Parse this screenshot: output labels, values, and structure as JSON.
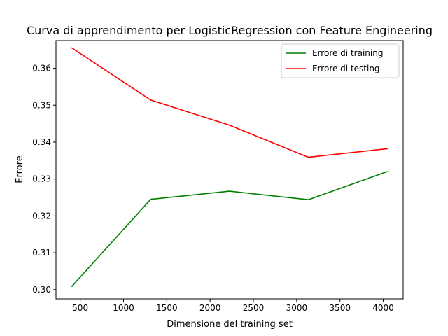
{
  "chart_data": {
    "type": "line",
    "title": "Curva di apprendimento per LogisticRegression con Feature Engineering",
    "xlabel": "Dimensione del training set",
    "ylabel": "Errore",
    "xlim": [
      220,
      4230
    ],
    "ylim": [
      0.2975,
      0.3675
    ],
    "xticks": [
      500,
      1000,
      1500,
      2000,
      2500,
      3000,
      3500,
      4000
    ],
    "xtick_labels": [
      "500",
      "1000",
      "1500",
      "2000",
      "2500",
      "3000",
      "3500",
      "4000"
    ],
    "yticks": [
      0.3,
      0.31,
      0.32,
      0.33,
      0.34,
      0.35,
      0.36
    ],
    "ytick_labels": [
      "0.30",
      "0.31",
      "0.32",
      "0.33",
      "0.34",
      "0.35",
      "0.36"
    ],
    "grid": false,
    "legend_position": "top-right",
    "x": [
      404,
      1314,
      2224,
      3135,
      4045
    ],
    "series": [
      {
        "name": "Errore di training",
        "color": "#008000",
        "values": [
          0.3009,
          0.3245,
          0.3267,
          0.3244,
          0.332
        ]
      },
      {
        "name": "Errore di testing",
        "color": "#ff0000",
        "values": [
          0.3655,
          0.3514,
          0.3446,
          0.3359,
          0.3382
        ]
      }
    ]
  }
}
